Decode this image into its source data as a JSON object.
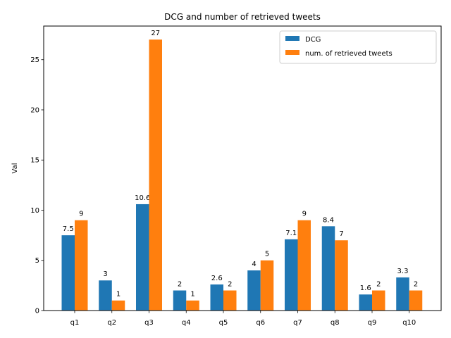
{
  "chart_data": {
    "type": "bar",
    "title": "DCG and number of retrieved tweets",
    "xlabel": "",
    "ylabel": "Val",
    "categories": [
      "q1",
      "q2",
      "q3",
      "q4",
      "q5",
      "q6",
      "q7",
      "q8",
      "q9",
      "q10"
    ],
    "series": [
      {
        "name": "DCG",
        "color": "#1f77b4",
        "values": [
          7.5,
          3,
          10.6,
          2,
          2.6,
          4,
          7.1,
          8.4,
          1.6,
          3.3
        ],
        "labels": [
          "7.5",
          "3",
          "10.6",
          "2",
          "2.6",
          "4",
          "7.1",
          "8.4",
          "1.6",
          "3.3"
        ]
      },
      {
        "name": "num. of retrieved tweets",
        "color": "#ff7f0e",
        "values": [
          9,
          1,
          27,
          1,
          2,
          5,
          9,
          7,
          2,
          2
        ],
        "labels": [
          "9",
          "1",
          "27",
          "1",
          "2",
          "5",
          "9",
          "7",
          "2",
          "2"
        ]
      }
    ],
    "ylim": [
      0,
      28.35
    ],
    "yticks": [
      0,
      5,
      10,
      15,
      20,
      25
    ],
    "ytick_labels": [
      "0",
      "5",
      "10",
      "15",
      "20",
      "25"
    ],
    "legend": "top-right",
    "grid": false
  }
}
